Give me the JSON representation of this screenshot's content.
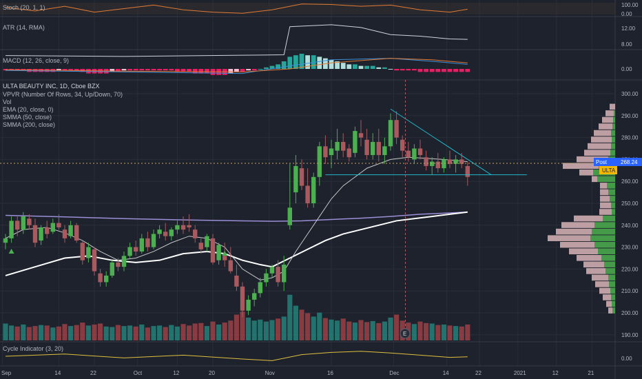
{
  "colors": {
    "background": "#1e222d",
    "grid": "#2a2e39",
    "text": "#b2b5be",
    "bull": "#4caf50",
    "bear": "#a85a5f",
    "vol_bull": "#26807a",
    "vol_bear": "#9c3f46",
    "ema": "#c8c8c8",
    "smma50": "#ffffff",
    "smma200": "#9b8fd8",
    "trendline": "#22b8c9",
    "post_tag": "#2962ff",
    "ulta_tag": "#f5b800",
    "stoch": "#e07a35",
    "macd": "#3f8fd8",
    "signal": "#e07a35"
  },
  "panes": {
    "stoch": {
      "label": "Stoch (20, 1, 1)",
      "ticks": [
        "100.00",
        "0.00"
      ]
    },
    "atr": {
      "label": "ATR (14, RMA)",
      "ticks": [
        "12.00",
        "8.00"
      ]
    },
    "macd": {
      "label": "MACD (12, 26, close, 9)",
      "ticks": [
        "0.00"
      ]
    },
    "cycle": {
      "label": "Cycle Indicator (3, 20)",
      "ticks": [
        "0.00"
      ]
    }
  },
  "main": {
    "title": "ULTA BEAUTY INC, 1D, Cboe BZX",
    "indicators": [
      "VPVR (Number Of Rows, 34, Up/Down, 70)",
      "Vol",
      "EMA (20, close, 0)",
      "SMMA (50, close)",
      "SMMA (200, close)"
    ],
    "price_ticks": [
      "300.00",
      "290.00",
      "280.00",
      "270.00",
      "260.00",
      "250.00",
      "240.00",
      "230.00",
      "220.00",
      "210.00",
      "200.00",
      "190.00"
    ],
    "post_tag": {
      "label": "Post",
      "value": "268.24"
    },
    "symbol_tag": "ULTA",
    "earnings_marker": "E"
  },
  "x_axis": {
    "labels": [
      {
        "text": "Sep",
        "i": -0.5
      },
      {
        "text": "14",
        "i": 9
      },
      {
        "text": "22",
        "i": 15
      },
      {
        "text": "Oct",
        "i": 22.3
      },
      {
        "text": "12",
        "i": 29
      },
      {
        "text": "20",
        "i": 35
      },
      {
        "text": "Nov",
        "i": 44.5
      },
      {
        "text": "16",
        "i": 55
      },
      {
        "text": "Dec",
        "i": 65.5
      },
      {
        "text": "14",
        "i": 74.5
      },
      {
        "text": "22",
        "i": 80
      },
      {
        "text": "2021",
        "i": 86.5
      },
      {
        "text": "12",
        "i": 93
      },
      {
        "text": "21",
        "i": 99
      }
    ]
  },
  "chart_data": {
    "type": "candlestick",
    "title": "ULTA BEAUTY INC, 1D, Cboe BZX",
    "ylim": [
      186,
      305
    ],
    "candles": [
      [
        232,
        236,
        229,
        234
      ],
      [
        234,
        244,
        232,
        242
      ],
      [
        242,
        244,
        235,
        238
      ],
      [
        238,
        246,
        236,
        244
      ],
      [
        243,
        245,
        238,
        240
      ],
      [
        240,
        243,
        230,
        232
      ],
      [
        233,
        240,
        231,
        239
      ],
      [
        239,
        242,
        234,
        236
      ],
      [
        237,
        243,
        236,
        241
      ],
      [
        241,
        245,
        238,
        239
      ],
      [
        238,
        240,
        232,
        234
      ],
      [
        235,
        242,
        234,
        240
      ],
      [
        240,
        241,
        232,
        233
      ],
      [
        232,
        233,
        222,
        224
      ],
      [
        225,
        232,
        223,
        230
      ],
      [
        229,
        230,
        217,
        219
      ],
      [
        218,
        220,
        212,
        214
      ],
      [
        214,
        219,
        212,
        217
      ],
      [
        217,
        224,
        216,
        223
      ],
      [
        223,
        225,
        219,
        221
      ],
      [
        221,
        228,
        219,
        226
      ],
      [
        226,
        232,
        225,
        230
      ],
      [
        230,
        233,
        226,
        228
      ],
      [
        228,
        236,
        227,
        234
      ],
      [
        234,
        237,
        228,
        230
      ],
      [
        230,
        238,
        229,
        236
      ],
      [
        236,
        240,
        234,
        238
      ],
      [
        237,
        241,
        233,
        235
      ],
      [
        235,
        239,
        233,
        238
      ],
      [
        238,
        242,
        236,
        240
      ],
      [
        240,
        244,
        236,
        238
      ],
      [
        240,
        245,
        237,
        239
      ],
      [
        238,
        240,
        232,
        234
      ],
      [
        232,
        234,
        227,
        229
      ],
      [
        230,
        236,
        228,
        235
      ],
      [
        234,
        236,
        222,
        223
      ],
      [
        224,
        232,
        222,
        231
      ],
      [
        226,
        232,
        221,
        224
      ],
      [
        224,
        230,
        218,
        219
      ],
      [
        217,
        222,
        210,
        212
      ],
      [
        212,
        214,
        198,
        201
      ],
      [
        201,
        208,
        199,
        206
      ],
      [
        206,
        211,
        203,
        209
      ],
      [
        209,
        216,
        207,
        214
      ],
      [
        214,
        220,
        212,
        218
      ],
      [
        218,
        222,
        216,
        221
      ],
      [
        221,
        224,
        212,
        214
      ],
      [
        214,
        226,
        210,
        222
      ],
      [
        240,
        268,
        238,
        248
      ],
      [
        255,
        272,
        250,
        267
      ],
      [
        266,
        270,
        256,
        258
      ],
      [
        258,
        266,
        248,
        250
      ],
      [
        250,
        264,
        248,
        262
      ],
      [
        262,
        278,
        258,
        276
      ],
      [
        276,
        281,
        268,
        271
      ],
      [
        272,
        279,
        266,
        275
      ],
      [
        274,
        284,
        270,
        278
      ],
      [
        278,
        282,
        271,
        274
      ],
      [
        275,
        277,
        269,
        271
      ],
      [
        273,
        285,
        271,
        283
      ],
      [
        282,
        288,
        276,
        280
      ],
      [
        279,
        284,
        270,
        272
      ],
      [
        272,
        282,
        270,
        278
      ],
      [
        278,
        284,
        269,
        272
      ],
      [
        272,
        280,
        268,
        276
      ],
      [
        276,
        291,
        274,
        288
      ],
      [
        288,
        292,
        277,
        280
      ],
      [
        279,
        281,
        271,
        274
      ],
      [
        274,
        278,
        269,
        271
      ],
      [
        270,
        277,
        268,
        275
      ],
      [
        275,
        279,
        270,
        272
      ],
      [
        271,
        274,
        265,
        267
      ],
      [
        267,
        271,
        263,
        269
      ],
      [
        269,
        273,
        264,
        266
      ],
      [
        266,
        271,
        264,
        270
      ],
      [
        270,
        274,
        266,
        268
      ],
      [
        268,
        272,
        264,
        270
      ],
      [
        270,
        273,
        266,
        268
      ],
      [
        267,
        269,
        258,
        262
      ]
    ],
    "volume": [
      34,
      30,
      28,
      32,
      27,
      29,
      31,
      30,
      26,
      28,
      33,
      29,
      31,
      36,
      30,
      32,
      34,
      28,
      27,
      31,
      29,
      30,
      28,
      32,
      26,
      29,
      30,
      27,
      31,
      28,
      33,
      30,
      34,
      35,
      29,
      38,
      32,
      36,
      40,
      52,
      58,
      46,
      40,
      42,
      38,
      41,
      44,
      48,
      92,
      70,
      62,
      55,
      48,
      56,
      45,
      42,
      40,
      44,
      38,
      36,
      41,
      37,
      39,
      35,
      38,
      46,
      52,
      40,
      36,
      33,
      38,
      35,
      34,
      31,
      32,
      30,
      29,
      28,
      32
    ],
    "ema20": [
      [
        0,
        234
      ],
      [
        3,
        238
      ],
      [
        7,
        239
      ],
      [
        10,
        236.5
      ],
      [
        13,
        233
      ],
      [
        16,
        228
      ],
      [
        19,
        224
      ],
      [
        22,
        225
      ],
      [
        25,
        228
      ],
      [
        28,
        232
      ],
      [
        31,
        235
      ],
      [
        34,
        234
      ],
      [
        37,
        230
      ],
      [
        40,
        220
      ],
      [
        43,
        215
      ],
      [
        45,
        216
      ],
      [
        47,
        219
      ],
      [
        49,
        228
      ],
      [
        51,
        236
      ],
      [
        53,
        244
      ],
      [
        55,
        252
      ],
      [
        57,
        258
      ],
      [
        59,
        262
      ],
      [
        61,
        266
      ],
      [
        63,
        268
      ],
      [
        65,
        270
      ],
      [
        68,
        271
      ],
      [
        71,
        270.5
      ],
      [
        74,
        270
      ],
      [
        78,
        269
      ]
    ],
    "smma50": [
      [
        0,
        217
      ],
      [
        5,
        221
      ],
      [
        10,
        225
      ],
      [
        14,
        226
      ],
      [
        18,
        224
      ],
      [
        22,
        223
      ],
      [
        26,
        224
      ],
      [
        30,
        227
      ],
      [
        34,
        228
      ],
      [
        37,
        227
      ],
      [
        40,
        224
      ],
      [
        43,
        222
      ],
      [
        45,
        221
      ],
      [
        48,
        225
      ],
      [
        51,
        229
      ],
      [
        54,
        233
      ],
      [
        57,
        236
      ],
      [
        60,
        238
      ],
      [
        63,
        240
      ],
      [
        66,
        242
      ],
      [
        69,
        243
      ],
      [
        72,
        244
      ],
      [
        75,
        245
      ],
      [
        78,
        246
      ]
    ],
    "smma200": [
      [
        0,
        244.5
      ],
      [
        10,
        243.8
      ],
      [
        20,
        243
      ],
      [
        30,
        242.4
      ],
      [
        40,
        242
      ],
      [
        45,
        241.8
      ],
      [
        50,
        242
      ],
      [
        55,
        242.6
      ],
      [
        60,
        243.2
      ],
      [
        65,
        244
      ],
      [
        70,
        245
      ],
      [
        75,
        245.6
      ],
      [
        78,
        246
      ]
    ],
    "trendlines": [
      {
        "from": [
          65,
          293
        ],
        "to": [
          82,
          263
        ]
      },
      {
        "from": [
          54,
          263
        ],
        "to": [
          88,
          263
        ]
      }
    ],
    "markers_up": [
      [
        1,
        228
      ],
      [
        37,
        227
      ]
    ],
    "vpvr": [
      [
        294,
        0,
        8
      ],
      [
        291,
        2,
        12
      ],
      [
        288,
        3,
        16
      ],
      [
        285,
        4,
        20
      ],
      [
        282,
        6,
        25
      ],
      [
        279,
        5,
        30
      ],
      [
        276,
        6,
        34
      ],
      [
        273,
        7,
        38
      ],
      [
        270,
        10,
        46
      ],
      [
        267,
        24,
        52
      ],
      [
        264,
        32,
        20
      ],
      [
        261,
        26,
        8
      ],
      [
        258,
        12,
        10
      ],
      [
        255,
        10,
        12
      ],
      [
        252,
        8,
        14
      ],
      [
        249,
        6,
        16
      ],
      [
        246,
        5,
        18
      ],
      [
        243,
        18,
        42
      ],
      [
        240,
        30,
        48
      ],
      [
        237,
        34,
        52
      ],
      [
        234,
        36,
        62
      ],
      [
        231,
        30,
        50
      ],
      [
        228,
        25,
        42
      ],
      [
        225,
        20,
        36
      ],
      [
        222,
        16,
        30
      ],
      [
        219,
        14,
        28
      ],
      [
        216,
        10,
        24
      ],
      [
        213,
        9,
        20
      ],
      [
        210,
        7,
        16
      ],
      [
        207,
        6,
        12
      ],
      [
        204,
        5,
        8
      ],
      [
        201,
        4,
        6
      ]
    ],
    "stoch": [
      [
        0,
        60
      ],
      [
        5,
        30
      ],
      [
        10,
        70
      ],
      [
        15,
        20
      ],
      [
        20,
        50
      ],
      [
        25,
        80
      ],
      [
        30,
        40
      ],
      [
        35,
        20
      ],
      [
        40,
        10
      ],
      [
        45,
        40
      ],
      [
        50,
        90
      ],
      [
        55,
        85
      ],
      [
        60,
        70
      ],
      [
        65,
        80
      ],
      [
        70,
        40
      ],
      [
        75,
        20
      ],
      [
        78,
        45
      ]
    ],
    "atr": [
      [
        0,
        5.1
      ],
      [
        20,
        4.9
      ],
      [
        40,
        5.2
      ],
      [
        47,
        5.3
      ],
      [
        48,
        12.4
      ],
      [
        55,
        12.9
      ],
      [
        60,
        12.2
      ],
      [
        65,
        10.4
      ],
      [
        70,
        10.0
      ],
      [
        75,
        9.3
      ],
      [
        78,
        9.2
      ]
    ],
    "macd_hist": [
      -1,
      -1,
      -1,
      -1,
      -2,
      -2,
      -2,
      -2,
      -2,
      -1,
      -1,
      -1,
      -1,
      -2,
      -3,
      -3,
      -3,
      -3,
      -2,
      -2,
      -1,
      -1,
      -1,
      -1,
      -1,
      -1,
      -1,
      -1,
      -1,
      -2,
      -2,
      -2,
      -3,
      -3,
      -3,
      -4,
      -4,
      -4,
      -3,
      -2,
      -2,
      -1,
      -1,
      0,
      1,
      2,
      3,
      5,
      8,
      9,
      10,
      9,
      9,
      8,
      7,
      6,
      5,
      4,
      3,
      3,
      2,
      2,
      2,
      1,
      1,
      0,
      -1,
      -1,
      -1,
      -1,
      -2,
      -2,
      -2,
      -2,
      -2,
      -2,
      -2,
      -2,
      -2
    ],
    "macd_line": [
      [
        0,
        -1
      ],
      [
        20,
        -2
      ],
      [
        40,
        -3
      ],
      [
        48,
        2
      ],
      [
        55,
        6
      ],
      [
        65,
        7
      ],
      [
        72,
        5
      ],
      [
        78,
        3
      ]
    ],
    "signal_line": [
      [
        0,
        -0.5
      ],
      [
        20,
        -1.5
      ],
      [
        40,
        -2
      ],
      [
        48,
        0
      ],
      [
        55,
        4
      ],
      [
        65,
        7
      ],
      [
        72,
        6
      ],
      [
        78,
        4
      ]
    ],
    "cycle": [
      [
        0,
        0
      ],
      [
        10,
        0.4
      ],
      [
        20,
        -0.3
      ],
      [
        30,
        0.2
      ],
      [
        40,
        -0.5
      ],
      [
        45,
        -0.8
      ],
      [
        50,
        0.3
      ],
      [
        55,
        0.7
      ],
      [
        60,
        0.9
      ],
      [
        65,
        0.6
      ],
      [
        70,
        0.2
      ],
      [
        75,
        -0.2
      ],
      [
        78,
        -0.1
      ]
    ]
  }
}
